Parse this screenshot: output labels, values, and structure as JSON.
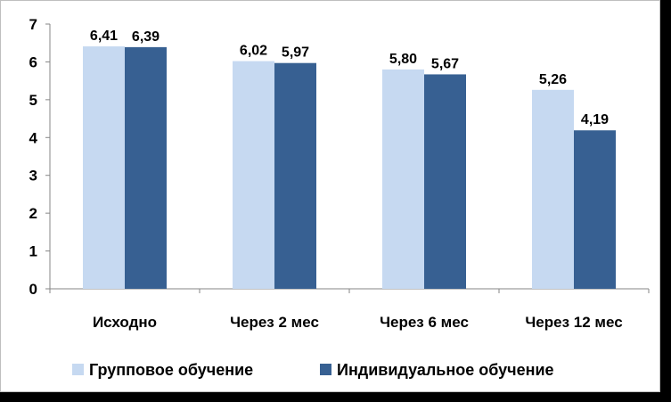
{
  "chart_data": {
    "type": "bar",
    "categories": [
      "Исходно",
      "Через 2 мес",
      "Через 6 мес",
      "Через 12 мес"
    ],
    "series": [
      {
        "name": "Групповое обучение",
        "values": [
          6.41,
          6.02,
          5.8,
          5.26
        ],
        "labels": [
          "6,41",
          "6,02",
          "5,80",
          "5,26"
        ],
        "color": "#c6d9f1"
      },
      {
        "name": "Индивидуальное обучение",
        "values": [
          6.39,
          5.97,
          5.67,
          4.19
        ],
        "labels": [
          "6,39",
          "5,97",
          "5,67",
          "4,19"
        ],
        "color": "#376092"
      }
    ],
    "ylim": [
      0,
      7
    ],
    "yticks": [
      "0",
      "1",
      "2",
      "3",
      "4",
      "5",
      "6",
      "7"
    ],
    "grid": false,
    "legend_position": "bottom",
    "title": "",
    "xlabel": "",
    "ylabel": ""
  }
}
